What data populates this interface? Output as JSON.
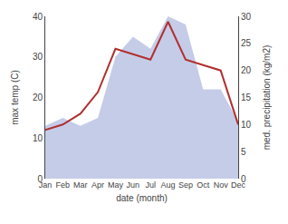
{
  "chart_data": {
    "type": "area",
    "categories": [
      "Jan",
      "Feb",
      "Mar",
      "Apr",
      "May",
      "Jun",
      "Jul",
      "Aug",
      "Sep",
      "Oct",
      "Nov",
      "Dec"
    ],
    "series": [
      {
        "type": "area",
        "color": "#c5cce8",
        "values": [
          13,
          15,
          13,
          15,
          30,
          35,
          32,
          40,
          38,
          22,
          22,
          14
        ]
      },
      {
        "type": "line",
        "color": "#b03030",
        "axis": "y2",
        "values": [
          9,
          10,
          12,
          16,
          24,
          23,
          22,
          29,
          22,
          21,
          20,
          10
        ]
      }
    ],
    "xlabel": "date (month)",
    "ylabel": "max temp (C)",
    "y2label": "med. precipitation (kg/m2)",
    "ylim": [
      0,
      40
    ],
    "yticks": [
      0,
      10,
      20,
      30,
      40
    ],
    "y2lim": [
      0,
      30
    ],
    "y2ticks": [
      0,
      5,
      10,
      15,
      20,
      25,
      30
    ],
    "grid": false,
    "legend": false
  }
}
